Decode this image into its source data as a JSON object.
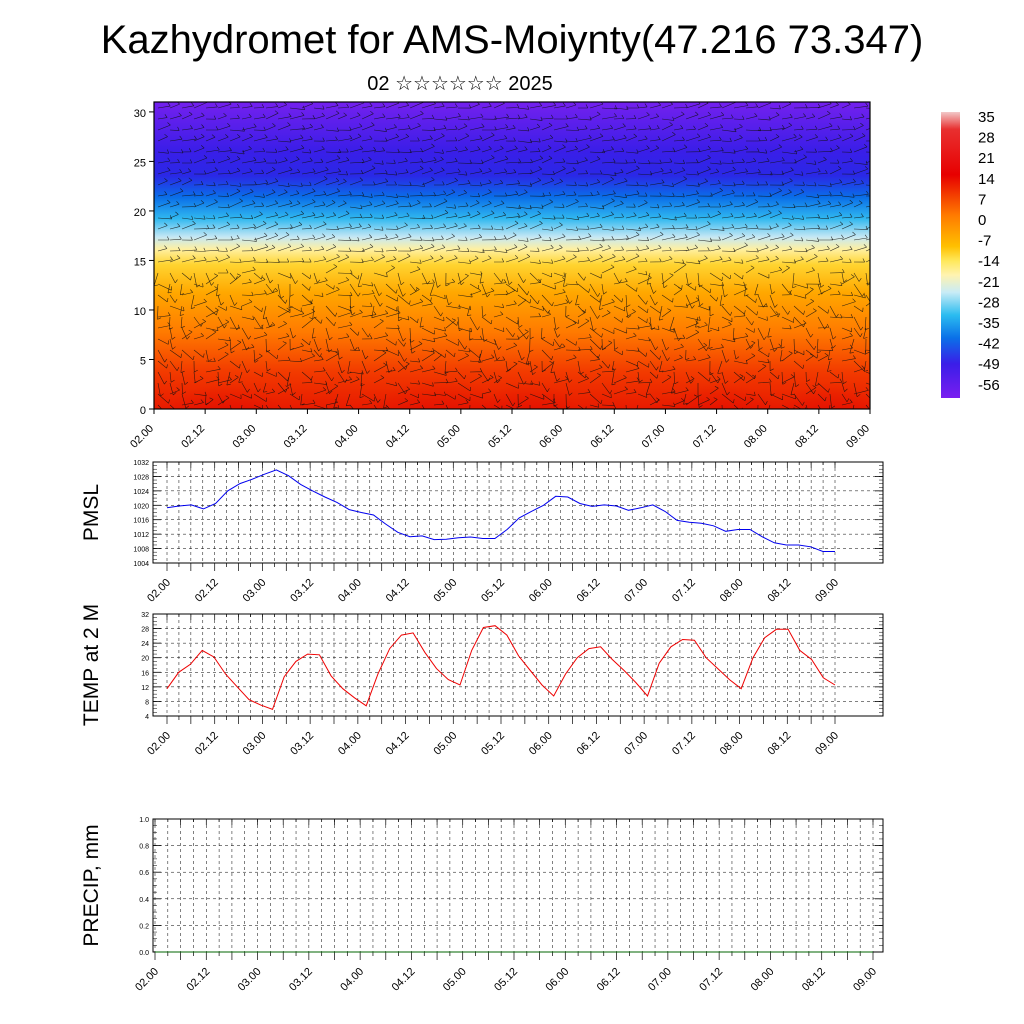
{
  "header": {
    "title": "Kazhydromet for AMS-Moiynty(47.216 73.347)",
    "subtitle": "02 ☆☆☆☆☆☆ 2025"
  },
  "chart_data": [
    {
      "type": "heatmap",
      "name": "cross-section",
      "x_ticks": [
        "02.00",
        "02.12",
        "03.00",
        "03.12",
        "04.00",
        "04.12",
        "05.00",
        "05.12",
        "06.00",
        "06.12",
        "07.00",
        "07.12",
        "08.00",
        "08.12",
        "09.00"
      ],
      "y_ticks": [
        "0",
        "5",
        "10",
        "15",
        "20",
        "25",
        "30"
      ],
      "ylim": [
        0,
        31
      ],
      "colorbar": {
        "labels": [
          "35",
          "28",
          "21",
          "14",
          "7",
          "0",
          "-7",
          "-14",
          "-21",
          "-28",
          "-35",
          "-42",
          "-49",
          "-56"
        ],
        "range": [
          -60,
          38
        ]
      },
      "vectors": "wind barbs overlaid"
    },
    {
      "type": "line",
      "name": "pmsl",
      "ylabel": "PMSL",
      "ylim": [
        1004,
        1032
      ],
      "y_ticks": [
        "1004",
        "1008",
        "1012",
        "1016",
        "1020",
        "1024",
        "1028",
        "1032"
      ],
      "x_ticks": [
        "02.00",
        "02.12",
        "03.00",
        "03.12",
        "04.00",
        "04.12",
        "05.00",
        "05.12",
        "06.00",
        "06.12",
        "07.00",
        "07.12",
        "08.00",
        "08.12",
        "09.00"
      ],
      "series": [
        {
          "color": "#0000ee",
          "values": [
            1019.3,
            1019.8,
            1020.1,
            1019.0,
            1020.5,
            1024.0,
            1026.0,
            1027.2,
            1028.6,
            1029.8,
            1028.2,
            1025.8,
            1024.0,
            1022.3,
            1020.8,
            1018.8,
            1018.0,
            1017.3,
            1014.8,
            1012.5,
            1011.3,
            1011.5,
            1010.5,
            1010.6,
            1011.0,
            1011.2,
            1010.8,
            1010.8,
            1013.3,
            1016.5,
            1018.3,
            1020.0,
            1022.5,
            1022.3,
            1020.5,
            1019.7,
            1020.1,
            1019.8,
            1018.6,
            1019.3,
            1020.1,
            1018.3,
            1015.8,
            1015.3,
            1015.0,
            1014.3,
            1012.8,
            1013.3,
            1013.3,
            1011.3,
            1009.6,
            1009.0,
            1009.0,
            1008.5,
            1007.2,
            1007.2
          ]
        }
      ]
    },
    {
      "type": "line",
      "name": "temp",
      "ylabel": "TEMP at 2 M",
      "ylim": [
        4,
        32
      ],
      "y_ticks": [
        "4",
        "8",
        "12",
        "16",
        "20",
        "24",
        "28",
        "32"
      ],
      "x_ticks": [
        "02.00",
        "02.12",
        "03.00",
        "03.12",
        "04.00",
        "04.12",
        "05.00",
        "05.12",
        "06.00",
        "06.12",
        "07.00",
        "07.12",
        "08.00",
        "08.12",
        "09.00"
      ],
      "series": [
        {
          "color": "#ee0000",
          "values": [
            11.5,
            16.0,
            18.2,
            22.0,
            20.2,
            15.5,
            12.0,
            8.5,
            7.0,
            5.8,
            14.8,
            19.0,
            21.0,
            20.8,
            15.0,
            11.5,
            9.0,
            6.8,
            15.5,
            22.5,
            26.2,
            26.8,
            21.5,
            17.0,
            14.0,
            12.5,
            22.0,
            28.3,
            28.8,
            26.2,
            20.5,
            16.5,
            12.5,
            9.5,
            15.5,
            20.0,
            22.5,
            23.0,
            19.5,
            16.5,
            13.2,
            9.5,
            18.5,
            23.0,
            25.0,
            24.8,
            20.0,
            17.0,
            14.0,
            11.5,
            20.0,
            25.5,
            27.8,
            27.8,
            22.0,
            19.5,
            14.5,
            12.5
          ]
        }
      ]
    },
    {
      "type": "line",
      "name": "precip",
      "ylabel": "PRECIP, mm",
      "ylim": [
        0,
        1
      ],
      "y_ticks": [
        "0.0",
        "0.2",
        "0.4",
        "0.6",
        "0.8",
        "1.0"
      ],
      "x_ticks": [
        "02.00",
        "02.12",
        "03.00",
        "03.12",
        "04.00",
        "04.12",
        "05.00",
        "05.12",
        "06.00",
        "06.12",
        "07.00",
        "07.12",
        "08.00",
        "08.12",
        "09.00"
      ],
      "series": [
        {
          "color": "#006400",
          "values": [
            0,
            0,
            0,
            0,
            0,
            0,
            0,
            0,
            0,
            0,
            0,
            0,
            0,
            0,
            0,
            0,
            0,
            0,
            0,
            0,
            0,
            0,
            0,
            0,
            0,
            0,
            0,
            0,
            0,
            0,
            0,
            0,
            0,
            0,
            0,
            0,
            0,
            0,
            0,
            0,
            0,
            0,
            0,
            0,
            0,
            0,
            0,
            0,
            0,
            0,
            0,
            0,
            0,
            0,
            0,
            0,
            0
          ]
        }
      ]
    }
  ]
}
